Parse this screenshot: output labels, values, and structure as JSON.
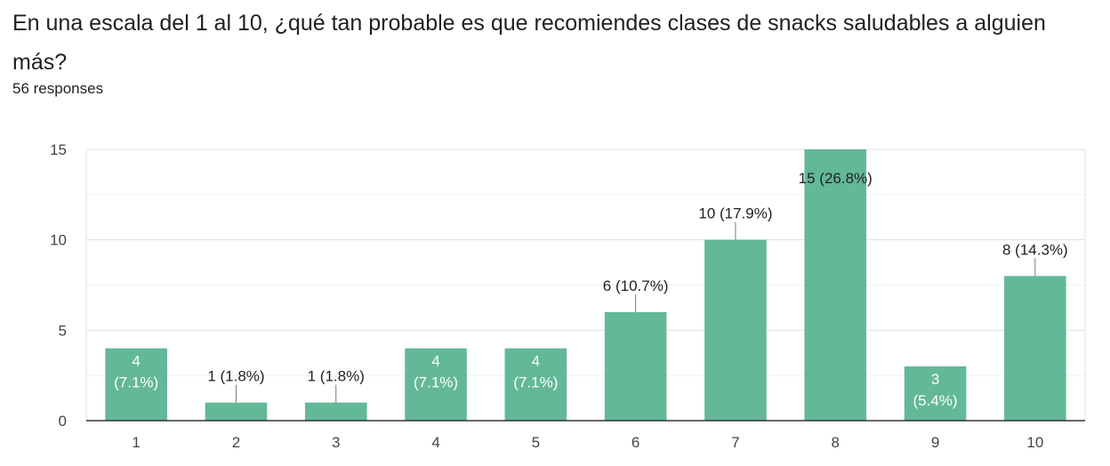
{
  "question": "En una escala del 1 al 10, ¿qué tan probable es que recomiendes clases de snacks saludables a alguien más?",
  "responses_label": "56 responses",
  "colors": {
    "bar": "#63b898",
    "grid": "#e6e6e6",
    "axis": "#333333",
    "label_inside": "#ffffff",
    "label_outside": "#202124"
  },
  "chart_data": {
    "type": "bar",
    "categories": [
      "1",
      "2",
      "3",
      "4",
      "5",
      "6",
      "7",
      "8",
      "9",
      "10"
    ],
    "values": [
      4,
      1,
      1,
      4,
      4,
      6,
      10,
      15,
      3,
      8
    ],
    "data_labels": [
      "4 (7.1%)",
      "1 (1.8%)",
      "1 (1.8%)",
      "4 (7.1%)",
      "4 (7.1%)",
      "6 (10.7%)",
      "10 (17.9%)",
      "15 (26.8%)",
      "3 (5.4%)",
      "8 (14.3%)"
    ],
    "label_inside": [
      true,
      false,
      false,
      true,
      true,
      false,
      false,
      true,
      true,
      false
    ],
    "ylim": [
      0,
      15
    ],
    "yticks": [
      0,
      5,
      10,
      15
    ],
    "grid": true
  }
}
